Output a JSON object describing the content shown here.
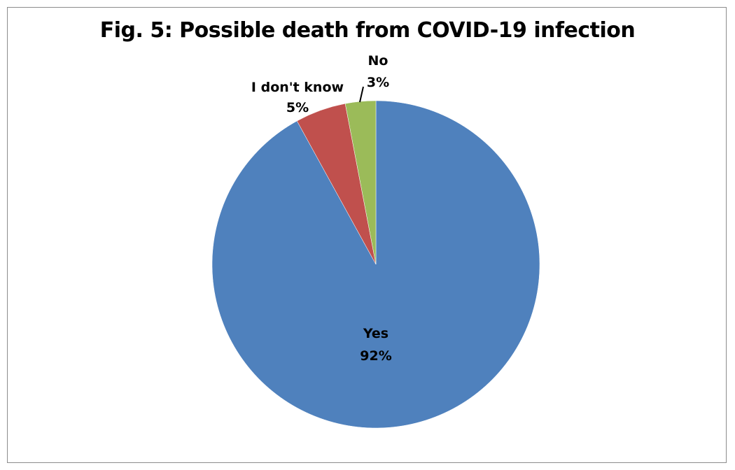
{
  "chart_data": {
    "type": "pie",
    "title": "Fig. 5: Possible death from COVID-19  infection",
    "start_angle_deg": 0,
    "direction": "clockwise",
    "categories": [
      "Yes",
      "I don't know",
      "No"
    ],
    "values": [
      92,
      5,
      3
    ],
    "labels": [
      "92%",
      "5%",
      "3%"
    ],
    "colors": [
      "#4F81BD",
      "#C0504D",
      "#9BBB59"
    ],
    "legend": "none",
    "data_labels": "category and percentage"
  }
}
